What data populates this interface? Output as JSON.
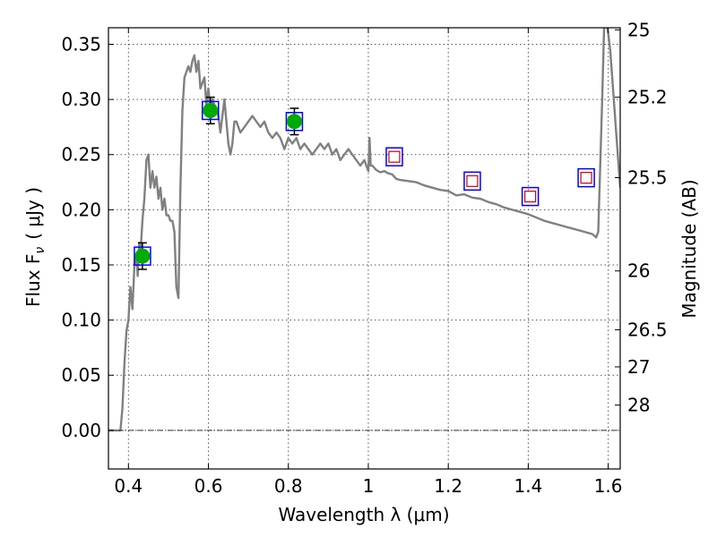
{
  "chart_data": {
    "type": "line",
    "xlabel": "Wavelength  λ (μm)",
    "ylabel": "Flux  F",
    "ylabel_subscript": "ν",
    "ylabel_unit": "( μJy )",
    "y2label": "Magnitude (AB)",
    "xlim": [
      0.35,
      1.63
    ],
    "ylim": [
      -0.035,
      0.365
    ],
    "grid": true,
    "x_ticks": [
      {
        "value": 0.4,
        "label": "0.4"
      },
      {
        "value": 0.6,
        "label": "0.6"
      },
      {
        "value": 0.8,
        "label": "0.8"
      },
      {
        "value": 1.0,
        "label": "1"
      },
      {
        "value": 1.2,
        "label": "1.2"
      },
      {
        "value": 1.4,
        "label": "1.4"
      },
      {
        "value": 1.6,
        "label": "1.6"
      }
    ],
    "y_ticks": [
      {
        "value": 0.0,
        "label": "0.00"
      },
      {
        "value": 0.05,
        "label": "0.05"
      },
      {
        "value": 0.1,
        "label": "0.10"
      },
      {
        "value": 0.15,
        "label": "0.15"
      },
      {
        "value": 0.2,
        "label": "0.20"
      },
      {
        "value": 0.25,
        "label": "0.25"
      },
      {
        "value": 0.3,
        "label": "0.30"
      },
      {
        "value": 0.35,
        "label": "0.35"
      }
    ],
    "y2_ticks": [
      {
        "mag": 25,
        "label": "25"
      },
      {
        "mag": 25.2,
        "label": "25.2"
      },
      {
        "mag": 25.5,
        "label": "25.5"
      },
      {
        "mag": 26,
        "label": "26"
      },
      {
        "mag": 26.5,
        "label": "26.5"
      },
      {
        "mag": 27,
        "label": "27"
      },
      {
        "mag": 28,
        "label": "28"
      }
    ],
    "series": [
      {
        "type": "line",
        "color": "#808080",
        "x": [
          0.35,
          0.38,
          0.385,
          0.39,
          0.395,
          0.4,
          0.405,
          0.41,
          0.415,
          0.42,
          0.423,
          0.427,
          0.43,
          0.435,
          0.44,
          0.445,
          0.45,
          0.455,
          0.46,
          0.465,
          0.47,
          0.475,
          0.48,
          0.485,
          0.49,
          0.495,
          0.5,
          0.505,
          0.51,
          0.515,
          0.52,
          0.525,
          0.53,
          0.535,
          0.54,
          0.545,
          0.55,
          0.555,
          0.56,
          0.565,
          0.57,
          0.575,
          0.58,
          0.585,
          0.59,
          0.595,
          0.6,
          0.605,
          0.61,
          0.615,
          0.62,
          0.625,
          0.63,
          0.64,
          0.65,
          0.655,
          0.66,
          0.665,
          0.67,
          0.68,
          0.69,
          0.7,
          0.71,
          0.72,
          0.73,
          0.74,
          0.75,
          0.76,
          0.77,
          0.78,
          0.79,
          0.8,
          0.81,
          0.82,
          0.83,
          0.84,
          0.85,
          0.86,
          0.87,
          0.88,
          0.89,
          0.9,
          0.91,
          0.92,
          0.93,
          0.94,
          0.95,
          0.96,
          0.97,
          0.98,
          0.99,
          1.0,
          1.003,
          1.006,
          1.01,
          1.02,
          1.03,
          1.04,
          1.05,
          1.06,
          1.07,
          1.08,
          1.1,
          1.12,
          1.14,
          1.16,
          1.18,
          1.2,
          1.22,
          1.24,
          1.26,
          1.28,
          1.3,
          1.32,
          1.34,
          1.36,
          1.38,
          1.4,
          1.42,
          1.44,
          1.46,
          1.48,
          1.5,
          1.52,
          1.54,
          1.56,
          1.57,
          1.575,
          1.58,
          1.585,
          1.59,
          1.595,
          1.6,
          1.605,
          1.61,
          1.62,
          1.63
        ],
        "y": [
          0.0,
          0.0,
          0.02,
          0.06,
          0.09,
          0.1,
          0.13,
          0.11,
          0.15,
          0.16,
          0.14,
          0.17,
          0.16,
          0.19,
          0.21,
          0.245,
          0.25,
          0.22,
          0.235,
          0.22,
          0.23,
          0.21,
          0.22,
          0.2,
          0.21,
          0.195,
          0.195,
          0.19,
          0.19,
          0.18,
          0.13,
          0.12,
          0.22,
          0.29,
          0.32,
          0.325,
          0.33,
          0.325,
          0.335,
          0.34,
          0.325,
          0.335,
          0.31,
          0.315,
          0.32,
          0.295,
          0.31,
          0.29,
          0.3,
          0.295,
          0.29,
          0.285,
          0.27,
          0.3,
          0.26,
          0.25,
          0.26,
          0.28,
          0.28,
          0.27,
          0.275,
          0.28,
          0.285,
          0.28,
          0.275,
          0.28,
          0.27,
          0.265,
          0.27,
          0.265,
          0.255,
          0.265,
          0.26,
          0.265,
          0.255,
          0.26,
          0.255,
          0.25,
          0.255,
          0.26,
          0.255,
          0.26,
          0.25,
          0.255,
          0.245,
          0.25,
          0.255,
          0.25,
          0.245,
          0.24,
          0.245,
          0.235,
          0.265,
          0.24,
          0.24,
          0.236,
          0.234,
          0.235,
          0.233,
          0.232,
          0.228,
          0.227,
          0.226,
          0.225,
          0.222,
          0.22,
          0.218,
          0.217,
          0.213,
          0.214,
          0.211,
          0.21,
          0.207,
          0.205,
          0.202,
          0.2,
          0.198,
          0.196,
          0.193,
          0.19,
          0.188,
          0.186,
          0.184,
          0.182,
          0.18,
          0.178,
          0.175,
          0.18,
          0.24,
          0.3,
          0.37,
          0.37,
          0.36,
          0.345,
          0.32,
          0.27,
          0.22
        ]
      },
      {
        "type": "scatter",
        "name": "filled",
        "marker": "circle",
        "color": "#00aa00",
        "x": [
          0.435,
          0.605,
          0.815
        ],
        "y": [
          0.158,
          0.29,
          0.28
        ],
        "yerr": [
          0.012,
          0.012,
          0.012
        ]
      },
      {
        "type": "scatter",
        "name": "open",
        "marker": "square",
        "color": "#cc0000",
        "x": [
          1.065,
          1.26,
          1.405,
          1.545
        ],
        "y": [
          0.248,
          0.226,
          0.212,
          0.229
        ]
      },
      {
        "type": "scatter",
        "name": "boxes",
        "marker": "square-open",
        "color": "#0000ff",
        "x": [
          0.435,
          0.605,
          0.815,
          1.065,
          1.26,
          1.405,
          1.545
        ],
        "y": [
          0.158,
          0.29,
          0.28,
          0.248,
          0.226,
          0.212,
          0.229
        ]
      }
    ]
  }
}
